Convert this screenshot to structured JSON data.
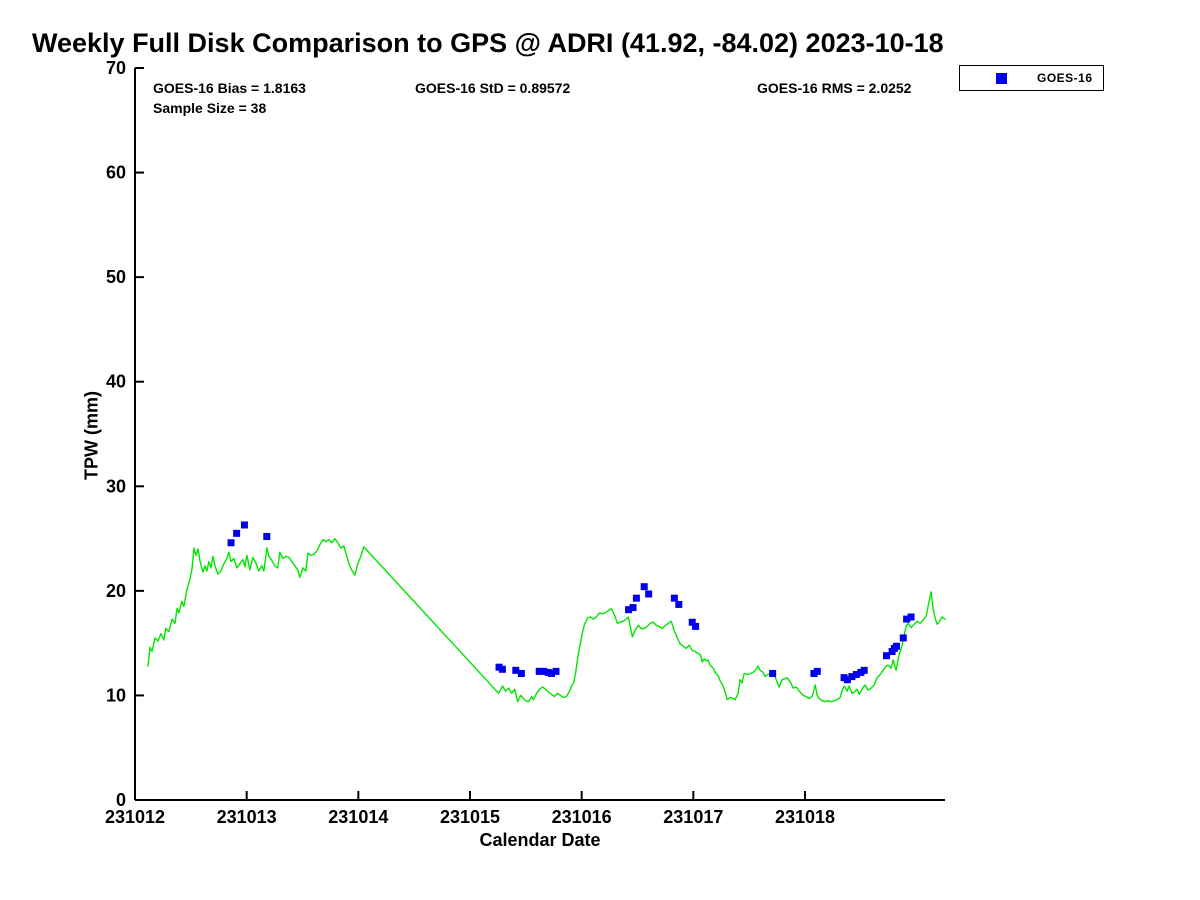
{
  "title": "Weekly Full Disk Comparison to GPS @ ADRI (41.92, -84.02) 2023-10-18",
  "stats": {
    "bias": "GOES-16 Bias = 1.8163",
    "std": "GOES-16 StD = 0.89572",
    "rms": "GOES-16 RMS = 2.0252",
    "sample": "Sample Size = 38"
  },
  "legend": {
    "entries": [
      {
        "label": "GOES-16",
        "marker": "square",
        "color": "#0000ee"
      }
    ],
    "position": "top-right"
  },
  "colors": {
    "axis": "#000000",
    "gps_line": "#00e600",
    "goes_marker": "#0000ee",
    "background": "#ffffff"
  },
  "chart_data": {
    "type": "line",
    "title": "Weekly Full Disk Comparison to GPS @ ADRI (41.92, -84.02) 2023-10-18",
    "xlabel": "Calendar Date",
    "ylabel": "TPW (mm)",
    "x_unit": "calendar date YYMMDD, x stored as October day-of-month (12 = 231012)",
    "xlim": [
      12,
      19.25
    ],
    "ylim": [
      0,
      70
    ],
    "y_ticks": [
      0,
      10,
      20,
      30,
      40,
      50,
      60,
      70
    ],
    "x_ticks": [
      {
        "day": 12,
        "label": "231012"
      },
      {
        "day": 13,
        "label": "231013"
      },
      {
        "day": 14,
        "label": "231014"
      },
      {
        "day": 15,
        "label": "231015"
      },
      {
        "day": 16,
        "label": "231016"
      },
      {
        "day": 17,
        "label": "231017"
      },
      {
        "day": 18,
        "label": "231018"
      }
    ],
    "grid": false,
    "legend_position": "top-right",
    "series": [
      {
        "name": "GPS",
        "type": "line",
        "color": "#00e600",
        "points": [
          [
            12.116,
            12.8
          ],
          [
            12.134,
            14.6
          ],
          [
            12.152,
            14.2
          ],
          [
            12.179,
            15.5
          ],
          [
            12.206,
            15.2
          ],
          [
            12.233,
            15.9
          ],
          [
            12.259,
            15.3
          ],
          [
            12.277,
            16.4
          ],
          [
            12.304,
            16.1
          ],
          [
            12.331,
            17.3
          ],
          [
            12.358,
            16.9
          ],
          [
            12.376,
            18.3
          ],
          [
            12.394,
            17.9
          ],
          [
            12.42,
            19.0
          ],
          [
            12.438,
            18.5
          ],
          [
            12.465,
            20.1
          ],
          [
            12.492,
            21.1
          ],
          [
            12.51,
            22.1
          ],
          [
            12.528,
            24.1
          ],
          [
            12.546,
            23.4
          ],
          [
            12.564,
            24.0
          ],
          [
            12.581,
            22.9
          ],
          [
            12.608,
            21.8
          ],
          [
            12.626,
            22.4
          ],
          [
            12.644,
            21.9
          ],
          [
            12.662,
            22.8
          ],
          [
            12.68,
            22.2
          ],
          [
            12.698,
            23.3
          ],
          [
            12.716,
            22.4
          ],
          [
            12.742,
            21.6
          ],
          [
            12.769,
            21.9
          ],
          [
            12.796,
            22.6
          ],
          [
            12.823,
            23.1
          ],
          [
            12.841,
            23.7
          ],
          [
            12.859,
            22.8
          ],
          [
            12.886,
            23.1
          ],
          [
            12.912,
            22.2
          ],
          [
            12.939,
            22.6
          ],
          [
            12.966,
            23.0
          ],
          [
            12.984,
            22.3
          ],
          [
            13.002,
            23.4
          ],
          [
            13.029,
            22.0
          ],
          [
            13.055,
            23.2
          ],
          [
            13.082,
            22.7
          ],
          [
            13.109,
            21.9
          ],
          [
            13.136,
            22.4
          ],
          [
            13.154,
            21.9
          ],
          [
            13.181,
            24.1
          ],
          [
            13.199,
            23.3
          ],
          [
            13.225,
            22.9
          ],
          [
            13.252,
            22.4
          ],
          [
            13.279,
            22.2
          ],
          [
            13.297,
            23.7
          ],
          [
            13.324,
            23.1
          ],
          [
            13.351,
            23.3
          ],
          [
            13.378,
            23.2
          ],
          [
            13.404,
            22.8
          ],
          [
            13.431,
            22.4
          ],
          [
            13.458,
            22.0
          ],
          [
            13.476,
            21.3
          ],
          [
            13.503,
            22.2
          ],
          [
            13.53,
            21.9
          ],
          [
            13.548,
            23.6
          ],
          [
            13.575,
            23.4
          ],
          [
            13.602,
            23.5
          ],
          [
            13.628,
            23.8
          ],
          [
            13.655,
            24.4
          ],
          [
            13.682,
            24.9
          ],
          [
            13.709,
            24.7
          ],
          [
            13.736,
            24.9
          ],
          [
            13.763,
            24.6
          ],
          [
            13.789,
            25.0
          ],
          [
            13.816,
            24.6
          ],
          [
            13.843,
            24.1
          ],
          [
            13.87,
            24.3
          ],
          [
            13.897,
            23.3
          ],
          [
            13.923,
            22.4
          ],
          [
            13.95,
            21.8
          ],
          [
            13.968,
            21.5
          ],
          [
            13.995,
            22.6
          ],
          [
            14.022,
            23.3
          ],
          [
            14.049,
            24.2
          ],
          [
            15.239,
            10.4
          ],
          [
            15.256,
            10.2
          ],
          [
            15.292,
            10.9
          ],
          [
            15.319,
            10.4
          ],
          [
            15.346,
            10.7
          ],
          [
            15.373,
            10.2
          ],
          [
            15.4,
            10.6
          ],
          [
            15.426,
            9.4
          ],
          [
            15.453,
            10.0
          ],
          [
            15.48,
            9.7
          ],
          [
            15.498,
            9.5
          ],
          [
            15.525,
            9.4
          ],
          [
            15.552,
            9.9
          ],
          [
            15.569,
            9.6
          ],
          [
            15.596,
            10.2
          ],
          [
            15.623,
            10.6
          ],
          [
            15.65,
            10.8
          ],
          [
            15.677,
            10.6
          ],
          [
            15.703,
            10.3
          ],
          [
            15.73,
            10.1
          ],
          [
            15.757,
            9.9
          ],
          [
            15.784,
            10.2
          ],
          [
            15.811,
            10.0
          ],
          [
            15.837,
            9.8
          ],
          [
            15.864,
            9.9
          ],
          [
            15.891,
            10.4
          ],
          [
            15.909,
            10.9
          ],
          [
            15.927,
            11.2
          ],
          [
            15.944,
            12.0
          ],
          [
            15.962,
            13.4
          ],
          [
            15.98,
            14.5
          ],
          [
            16.007,
            16.0
          ],
          [
            16.025,
            16.8
          ],
          [
            16.052,
            17.4
          ],
          [
            16.078,
            17.5
          ],
          [
            16.105,
            17.3
          ],
          [
            16.132,
            17.5
          ],
          [
            16.159,
            17.9
          ],
          [
            16.186,
            17.8
          ],
          [
            16.212,
            17.9
          ],
          [
            16.239,
            18.1
          ],
          [
            16.266,
            18.3
          ],
          [
            16.293,
            17.7
          ],
          [
            16.32,
            16.9
          ],
          [
            16.347,
            17.0
          ],
          [
            16.373,
            17.1
          ],
          [
            16.4,
            17.3
          ],
          [
            16.418,
            17.5
          ],
          [
            16.436,
            16.5
          ],
          [
            16.454,
            15.6
          ],
          [
            16.481,
            16.3
          ],
          [
            16.507,
            16.7
          ],
          [
            16.534,
            16.4
          ],
          [
            16.561,
            16.4
          ],
          [
            16.588,
            16.6
          ],
          [
            16.615,
            16.9
          ],
          [
            16.641,
            17.0
          ],
          [
            16.668,
            16.7
          ],
          [
            16.695,
            16.6
          ],
          [
            16.722,
            16.4
          ],
          [
            16.749,
            16.7
          ],
          [
            16.776,
            16.9
          ],
          [
            16.802,
            17.1
          ],
          [
            16.829,
            16.2
          ],
          [
            16.856,
            15.5
          ],
          [
            16.883,
            14.9
          ],
          [
            16.91,
            14.7
          ],
          [
            16.937,
            14.5
          ],
          [
            16.963,
            14.8
          ],
          [
            16.99,
            14.3
          ],
          [
            17.017,
            14.2
          ],
          [
            17.044,
            14.0
          ],
          [
            17.062,
            13.9
          ],
          [
            17.08,
            13.2
          ],
          [
            17.097,
            13.5
          ],
          [
            17.115,
            13.3
          ],
          [
            17.133,
            13.4
          ],
          [
            17.151,
            12.9
          ],
          [
            17.178,
            12.6
          ],
          [
            17.196,
            12.2
          ],
          [
            17.223,
            11.9
          ],
          [
            17.24,
            11.4
          ],
          [
            17.267,
            10.9
          ],
          [
            17.285,
            10.3
          ],
          [
            17.303,
            9.6
          ],
          [
            17.33,
            9.8
          ],
          [
            17.357,
            9.7
          ],
          [
            17.375,
            9.6
          ],
          [
            17.401,
            10.2
          ],
          [
            17.419,
            11.5
          ],
          [
            17.437,
            11.2
          ],
          [
            17.455,
            12.1
          ],
          [
            17.482,
            12.0
          ],
          [
            17.509,
            12.1
          ],
          [
            17.536,
            12.2
          ],
          [
            17.562,
            12.5
          ],
          [
            17.58,
            12.8
          ],
          [
            17.598,
            12.4
          ],
          [
            17.625,
            12.2
          ],
          [
            17.643,
            11.8
          ],
          [
            17.67,
            12.0
          ],
          [
            17.697,
            12.1
          ],
          [
            17.724,
            12.0
          ],
          [
            17.742,
            11.5
          ],
          [
            17.769,
            10.8
          ],
          [
            17.795,
            11.5
          ],
          [
            17.822,
            11.6
          ],
          [
            17.84,
            11.7
          ],
          [
            17.867,
            11.3
          ],
          [
            17.894,
            10.7
          ],
          [
            17.921,
            10.8
          ],
          [
            17.948,
            10.4
          ],
          [
            17.966,
            10.2
          ],
          [
            17.983,
            10.0
          ],
          [
            18.01,
            9.9
          ],
          [
            18.037,
            9.7
          ],
          [
            18.064,
            9.9
          ],
          [
            18.091,
            11.0
          ],
          [
            18.109,
            10.0
          ],
          [
            18.127,
            9.7
          ],
          [
            18.154,
            9.5
          ],
          [
            18.18,
            9.4
          ],
          [
            18.207,
            9.5
          ],
          [
            18.234,
            9.4
          ],
          [
            18.261,
            9.5
          ],
          [
            18.288,
            9.6
          ],
          [
            18.315,
            9.8
          ],
          [
            18.333,
            10.5
          ],
          [
            18.351,
            10.9
          ],
          [
            18.378,
            10.4
          ],
          [
            18.395,
            10.9
          ],
          [
            18.422,
            10.2
          ],
          [
            18.44,
            10.3
          ],
          [
            18.467,
            10.6
          ],
          [
            18.485,
            10.1
          ],
          [
            18.503,
            10.4
          ],
          [
            18.521,
            10.8
          ],
          [
            18.539,
            11.0
          ],
          [
            18.565,
            10.5
          ],
          [
            18.592,
            10.7
          ],
          [
            18.619,
            11.0
          ],
          [
            18.646,
            11.7
          ],
          [
            18.673,
            12.0
          ],
          [
            18.7,
            12.4
          ],
          [
            18.727,
            12.8
          ],
          [
            18.744,
            12.9
          ],
          [
            18.771,
            12.6
          ],
          [
            18.789,
            13.4
          ],
          [
            18.816,
            12.4
          ],
          [
            18.843,
            13.9
          ],
          [
            18.87,
            14.8
          ],
          [
            18.888,
            15.8
          ],
          [
            18.906,
            16.6
          ],
          [
            18.923,
            16.9
          ],
          [
            18.95,
            16.5
          ],
          [
            18.977,
            16.8
          ],
          [
            19.004,
            17.1
          ],
          [
            19.031,
            16.9
          ],
          [
            19.058,
            17.2
          ],
          [
            19.085,
            17.6
          ],
          [
            19.111,
            19.0
          ],
          [
            19.129,
            19.9
          ],
          [
            19.147,
            18.3
          ],
          [
            19.165,
            17.4
          ],
          [
            19.183,
            16.8
          ],
          [
            19.201,
            17.0
          ],
          [
            19.228,
            17.5
          ],
          [
            19.255,
            17.3
          ]
        ]
      },
      {
        "name": "GOES-16",
        "type": "scatter",
        "marker": "square",
        "color": "#0000ee",
        "points": [
          [
            12.86,
            24.6
          ],
          [
            12.91,
            25.5
          ],
          [
            12.98,
            26.3
          ],
          [
            13.18,
            25.2
          ],
          [
            15.26,
            12.7
          ],
          [
            15.29,
            12.5
          ],
          [
            15.41,
            12.4
          ],
          [
            15.46,
            12.1
          ],
          [
            15.62,
            12.3
          ],
          [
            15.66,
            12.3
          ],
          [
            15.7,
            12.2
          ],
          [
            15.73,
            12.1
          ],
          [
            15.77,
            12.3
          ],
          [
            16.42,
            18.2
          ],
          [
            16.46,
            18.4
          ],
          [
            16.49,
            19.3
          ],
          [
            16.56,
            20.4
          ],
          [
            16.6,
            19.7
          ],
          [
            16.83,
            19.3
          ],
          [
            16.87,
            18.7
          ],
          [
            16.99,
            17.0
          ],
          [
            17.02,
            16.6
          ],
          [
            17.71,
            12.1
          ],
          [
            18.08,
            12.1
          ],
          [
            18.11,
            12.3
          ],
          [
            18.35,
            11.7
          ],
          [
            18.38,
            11.5
          ],
          [
            18.42,
            11.8
          ],
          [
            18.46,
            12.0
          ],
          [
            18.5,
            12.2
          ],
          [
            18.53,
            12.4
          ],
          [
            18.73,
            13.8
          ],
          [
            18.78,
            14.2
          ],
          [
            18.8,
            14.5
          ],
          [
            18.82,
            14.7
          ],
          [
            18.88,
            15.5
          ],
          [
            18.91,
            17.3
          ],
          [
            18.95,
            17.5
          ]
        ]
      }
    ],
    "annotations": [
      "GOES-16 Bias = 1.8163",
      "GOES-16 StD = 0.89572",
      "GOES-16 RMS = 2.0252",
      "Sample Size = 38"
    ]
  }
}
